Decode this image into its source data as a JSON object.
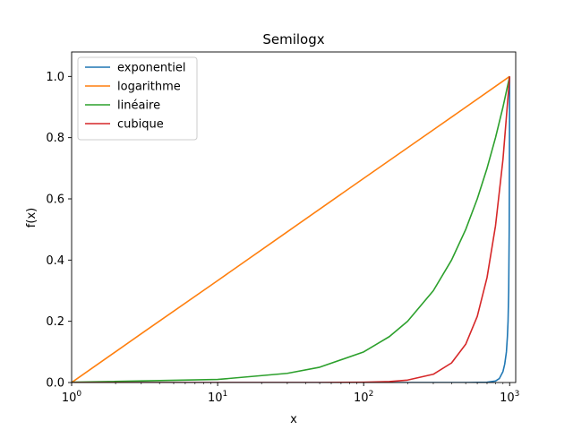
{
  "chart_data": {
    "type": "line",
    "title": "Semilogx",
    "xlabel": "x",
    "ylabel": "f(x)",
    "xscale": "log",
    "xlim": [
      1,
      1100
    ],
    "ylim": [
      0,
      1.08
    ],
    "grid": false,
    "legend_position": "top-left",
    "x_ticks": [
      {
        "value": 1,
        "base": "10",
        "exp": "0"
      },
      {
        "value": 10,
        "base": "10",
        "exp": "1"
      },
      {
        "value": 100,
        "base": "10",
        "exp": "2"
      },
      {
        "value": 1000,
        "base": "10",
        "exp": "3"
      }
    ],
    "y_ticks": [
      {
        "value": 0,
        "label": "0.0"
      },
      {
        "value": 0.2,
        "label": "0.2"
      },
      {
        "value": 0.4,
        "label": "0.4"
      },
      {
        "value": 0.6,
        "label": "0.6"
      },
      {
        "value": 0.8,
        "label": "0.8"
      },
      {
        "value": 1.0,
        "label": "1.0"
      }
    ],
    "series": [
      {
        "name": "exponentiel",
        "color": "#1f77b4",
        "x": [
          1,
          10,
          100,
          500,
          700,
          800,
          850,
          900,
          925,
          950,
          965,
          975,
          985,
          993,
          1000
        ],
        "y": [
          0,
          0,
          0,
          0,
          0.001,
          0.005,
          0.013,
          0.036,
          0.06,
          0.1,
          0.15,
          0.2,
          0.3,
          0.5,
          1.0
        ]
      },
      {
        "name": "logarithme",
        "color": "#ff7f0e",
        "x": [
          1,
          3.16,
          10,
          31.6,
          100,
          316,
          1000
        ],
        "y": [
          0,
          0.167,
          0.333,
          0.5,
          0.667,
          0.833,
          1.0
        ]
      },
      {
        "name": "linéaire",
        "color": "#2ca02c",
        "x": [
          1,
          10,
          30,
          50,
          100,
          150,
          200,
          300,
          400,
          500,
          600,
          700,
          800,
          900,
          1000
        ],
        "y": [
          0.001,
          0.01,
          0.03,
          0.05,
          0.1,
          0.15,
          0.2,
          0.3,
          0.4,
          0.5,
          0.6,
          0.7,
          0.8,
          0.9,
          1.0
        ]
      },
      {
        "name": "cubique",
        "color": "#d62728",
        "x": [
          1,
          10,
          50,
          100,
          150,
          200,
          300,
          400,
          500,
          600,
          700,
          800,
          900,
          1000
        ],
        "y": [
          0,
          0,
          0,
          0.001,
          0.003,
          0.008,
          0.027,
          0.064,
          0.125,
          0.216,
          0.343,
          0.512,
          0.729,
          1.0
        ]
      }
    ]
  }
}
